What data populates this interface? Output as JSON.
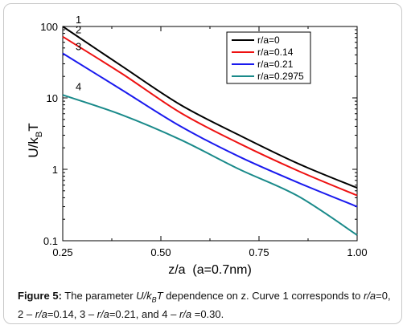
{
  "chart_data": {
    "type": "line",
    "xlabel": "z/a  (a=0.7nm)",
    "ylabel_main": "U/k",
    "ylabel_sub": "B",
    "ylabel_tail": "T",
    "xlim": [
      0.25,
      1.0
    ],
    "ylim": [
      0.1,
      100
    ],
    "yscale": "log",
    "x_ticks": [
      0.25,
      0.5,
      0.75,
      1.0
    ],
    "x_tick_labels": [
      "0.25",
      "0.50",
      "0.75",
      "1.00"
    ],
    "y_ticks": [
      0.1,
      1,
      10,
      100
    ],
    "y_tick_labels": [
      "0.1",
      "1",
      "10",
      "100"
    ],
    "legend_position": "top-right",
    "series": [
      {
        "name": "r/a=0",
        "curve_label": "1",
        "color": "#000000",
        "x": [
          0.25,
          0.4,
          0.55,
          0.7,
          0.85,
          1.0
        ],
        "y": [
          100,
          28,
          8,
          3,
          1.2,
          0.55
        ]
      },
      {
        "name": "r/a=0.14",
        "curve_label": "2",
        "color": "#ee1111",
        "x": [
          0.25,
          0.4,
          0.55,
          0.7,
          0.85,
          1.0
        ],
        "y": [
          72,
          22,
          6.2,
          2.3,
          0.95,
          0.43
        ]
      },
      {
        "name": "r/a=0.21",
        "curve_label": "3",
        "color": "#1a1aee",
        "x": [
          0.25,
          0.4,
          0.55,
          0.7,
          0.85,
          1.0
        ],
        "y": [
          42,
          13,
          4,
          1.5,
          0.65,
          0.3
        ]
      },
      {
        "name": "r/a=0.2975",
        "curve_label": "4",
        "color": "#1a8a8a",
        "x": [
          0.25,
          0.4,
          0.55,
          0.7,
          0.85,
          1.0
        ],
        "y": [
          11,
          5.8,
          2.6,
          1.0,
          0.42,
          0.12
        ]
      }
    ]
  },
  "caption": {
    "label": "Figure 5:",
    "t1": " The parameter ",
    "u": "U/k",
    "b": "B",
    "t": "T",
    "t2": " dependence on z. Curve 1 corresponds to ",
    "ra": "r/a",
    "v1": "=0, 2 – ",
    "v2": "=0.14, 3 – ",
    "v3": "=0.21, and 4 – ",
    "v4": " =0.30."
  }
}
